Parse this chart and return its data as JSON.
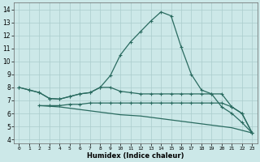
{
  "xlabel": "Humidex (Indice chaleur)",
  "bg_color": "#cce8e8",
  "grid_color": "#aacccc",
  "line_color": "#2a6b60",
  "xlim": [
    -0.5,
    23.5
  ],
  "ylim": [
    3.7,
    14.5
  ],
  "xticks": [
    0,
    1,
    2,
    3,
    4,
    5,
    6,
    7,
    8,
    9,
    10,
    11,
    12,
    13,
    14,
    15,
    16,
    17,
    18,
    19,
    20,
    21,
    22,
    23
  ],
  "yticks": [
    4,
    5,
    6,
    7,
    8,
    9,
    10,
    11,
    12,
    13,
    14
  ],
  "line1_x": [
    0,
    1,
    2,
    3,
    4,
    5,
    6,
    7,
    8,
    9,
    10,
    11,
    12,
    13,
    14,
    15,
    16,
    17,
    18,
    19,
    20,
    21,
    22,
    23
  ],
  "line1_y": [
    8.0,
    7.8,
    7.6,
    7.15,
    7.1,
    7.3,
    7.5,
    7.6,
    8.0,
    8.9,
    10.5,
    11.5,
    12.3,
    13.1,
    13.8,
    13.5,
    11.1,
    9.0,
    7.8,
    7.5,
    6.5,
    6.0,
    5.3,
    4.5
  ],
  "line2_x": [
    0,
    1,
    2,
    3,
    4,
    5,
    6,
    7,
    8,
    9,
    10,
    11,
    12,
    13,
    14,
    15,
    16,
    17,
    18,
    19,
    20,
    21,
    22,
    23
  ],
  "line2_y": [
    8.0,
    7.8,
    7.6,
    7.15,
    7.1,
    7.3,
    7.5,
    7.6,
    8.0,
    8.0,
    7.7,
    7.6,
    7.5,
    7.5,
    7.5,
    7.5,
    7.5,
    7.5,
    7.5,
    7.5,
    7.5,
    6.5,
    6.0,
    4.5
  ],
  "line3_x": [
    2,
    3,
    4,
    5,
    6,
    7,
    8,
    9,
    10,
    11,
    12,
    13,
    14,
    15,
    16,
    17,
    18,
    19,
    20,
    21,
    22,
    23
  ],
  "line3_y": [
    6.6,
    6.6,
    6.6,
    6.7,
    6.7,
    6.8,
    6.8,
    6.8,
    6.8,
    6.8,
    6.8,
    6.8,
    6.8,
    6.8,
    6.8,
    6.8,
    6.8,
    6.8,
    6.8,
    6.5,
    6.0,
    4.5
  ],
  "line4_x": [
    2,
    3,
    4,
    5,
    6,
    7,
    8,
    9,
    10,
    11,
    12,
    13,
    14,
    15,
    16,
    17,
    18,
    19,
    20,
    21,
    22,
    23
  ],
  "line4_y": [
    6.6,
    6.55,
    6.5,
    6.4,
    6.3,
    6.2,
    6.1,
    6.0,
    5.9,
    5.85,
    5.8,
    5.7,
    5.6,
    5.5,
    5.4,
    5.3,
    5.2,
    5.1,
    5.0,
    4.9,
    4.7,
    4.5
  ]
}
